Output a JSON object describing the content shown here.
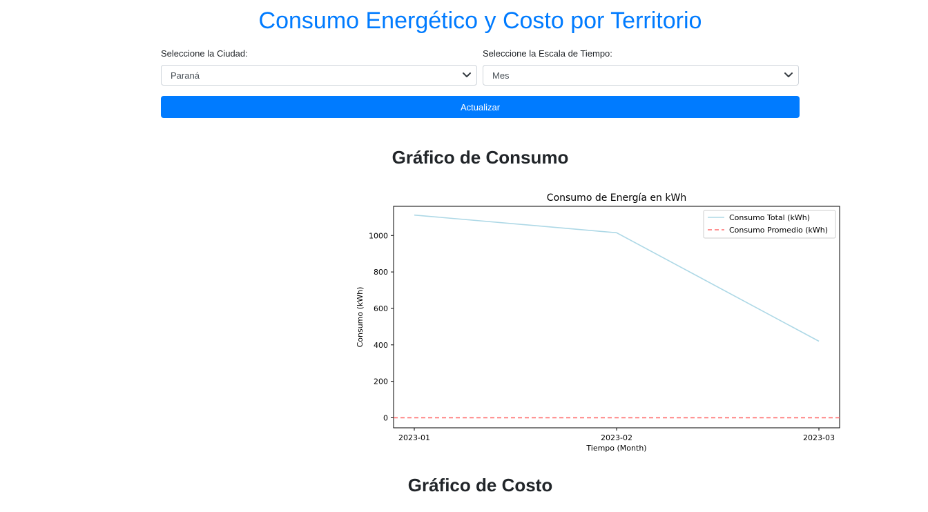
{
  "header": {
    "title": "Consumo Energético y Costo por Territorio"
  },
  "filters": {
    "city": {
      "label": "Seleccione la Ciudad:",
      "value": "Paraná"
    },
    "timescale": {
      "label": "Seleccione la Escala de Tiempo:",
      "value": "Mes"
    },
    "update_label": "Actualizar"
  },
  "sections": {
    "consumption_title": "Gráfico de Consumo",
    "cost_title": "Gráfico de Costo"
  },
  "chart_data": {
    "type": "line",
    "title": "Consumo de Energía en kWh",
    "xlabel": "Tiempo (Month)",
    "ylabel": "Consumo (kWh)",
    "categories": [
      "2023-01",
      "2023-02",
      "2023-03"
    ],
    "yticks": [
      0,
      200,
      400,
      600,
      800,
      1000
    ],
    "ylim": [
      -55,
      1160
    ],
    "legend_position": "upper-right",
    "grid": false,
    "series": [
      {
        "name": "Consumo Total (kWh)",
        "values": [
          1112,
          1015,
          420
        ],
        "color": "#add8e6",
        "style": "solid"
      },
      {
        "name": "Consumo Promedio (kWh)",
        "values": [
          0,
          0,
          0
        ],
        "color": "#ff6b6b",
        "style": "dashed"
      }
    ]
  }
}
